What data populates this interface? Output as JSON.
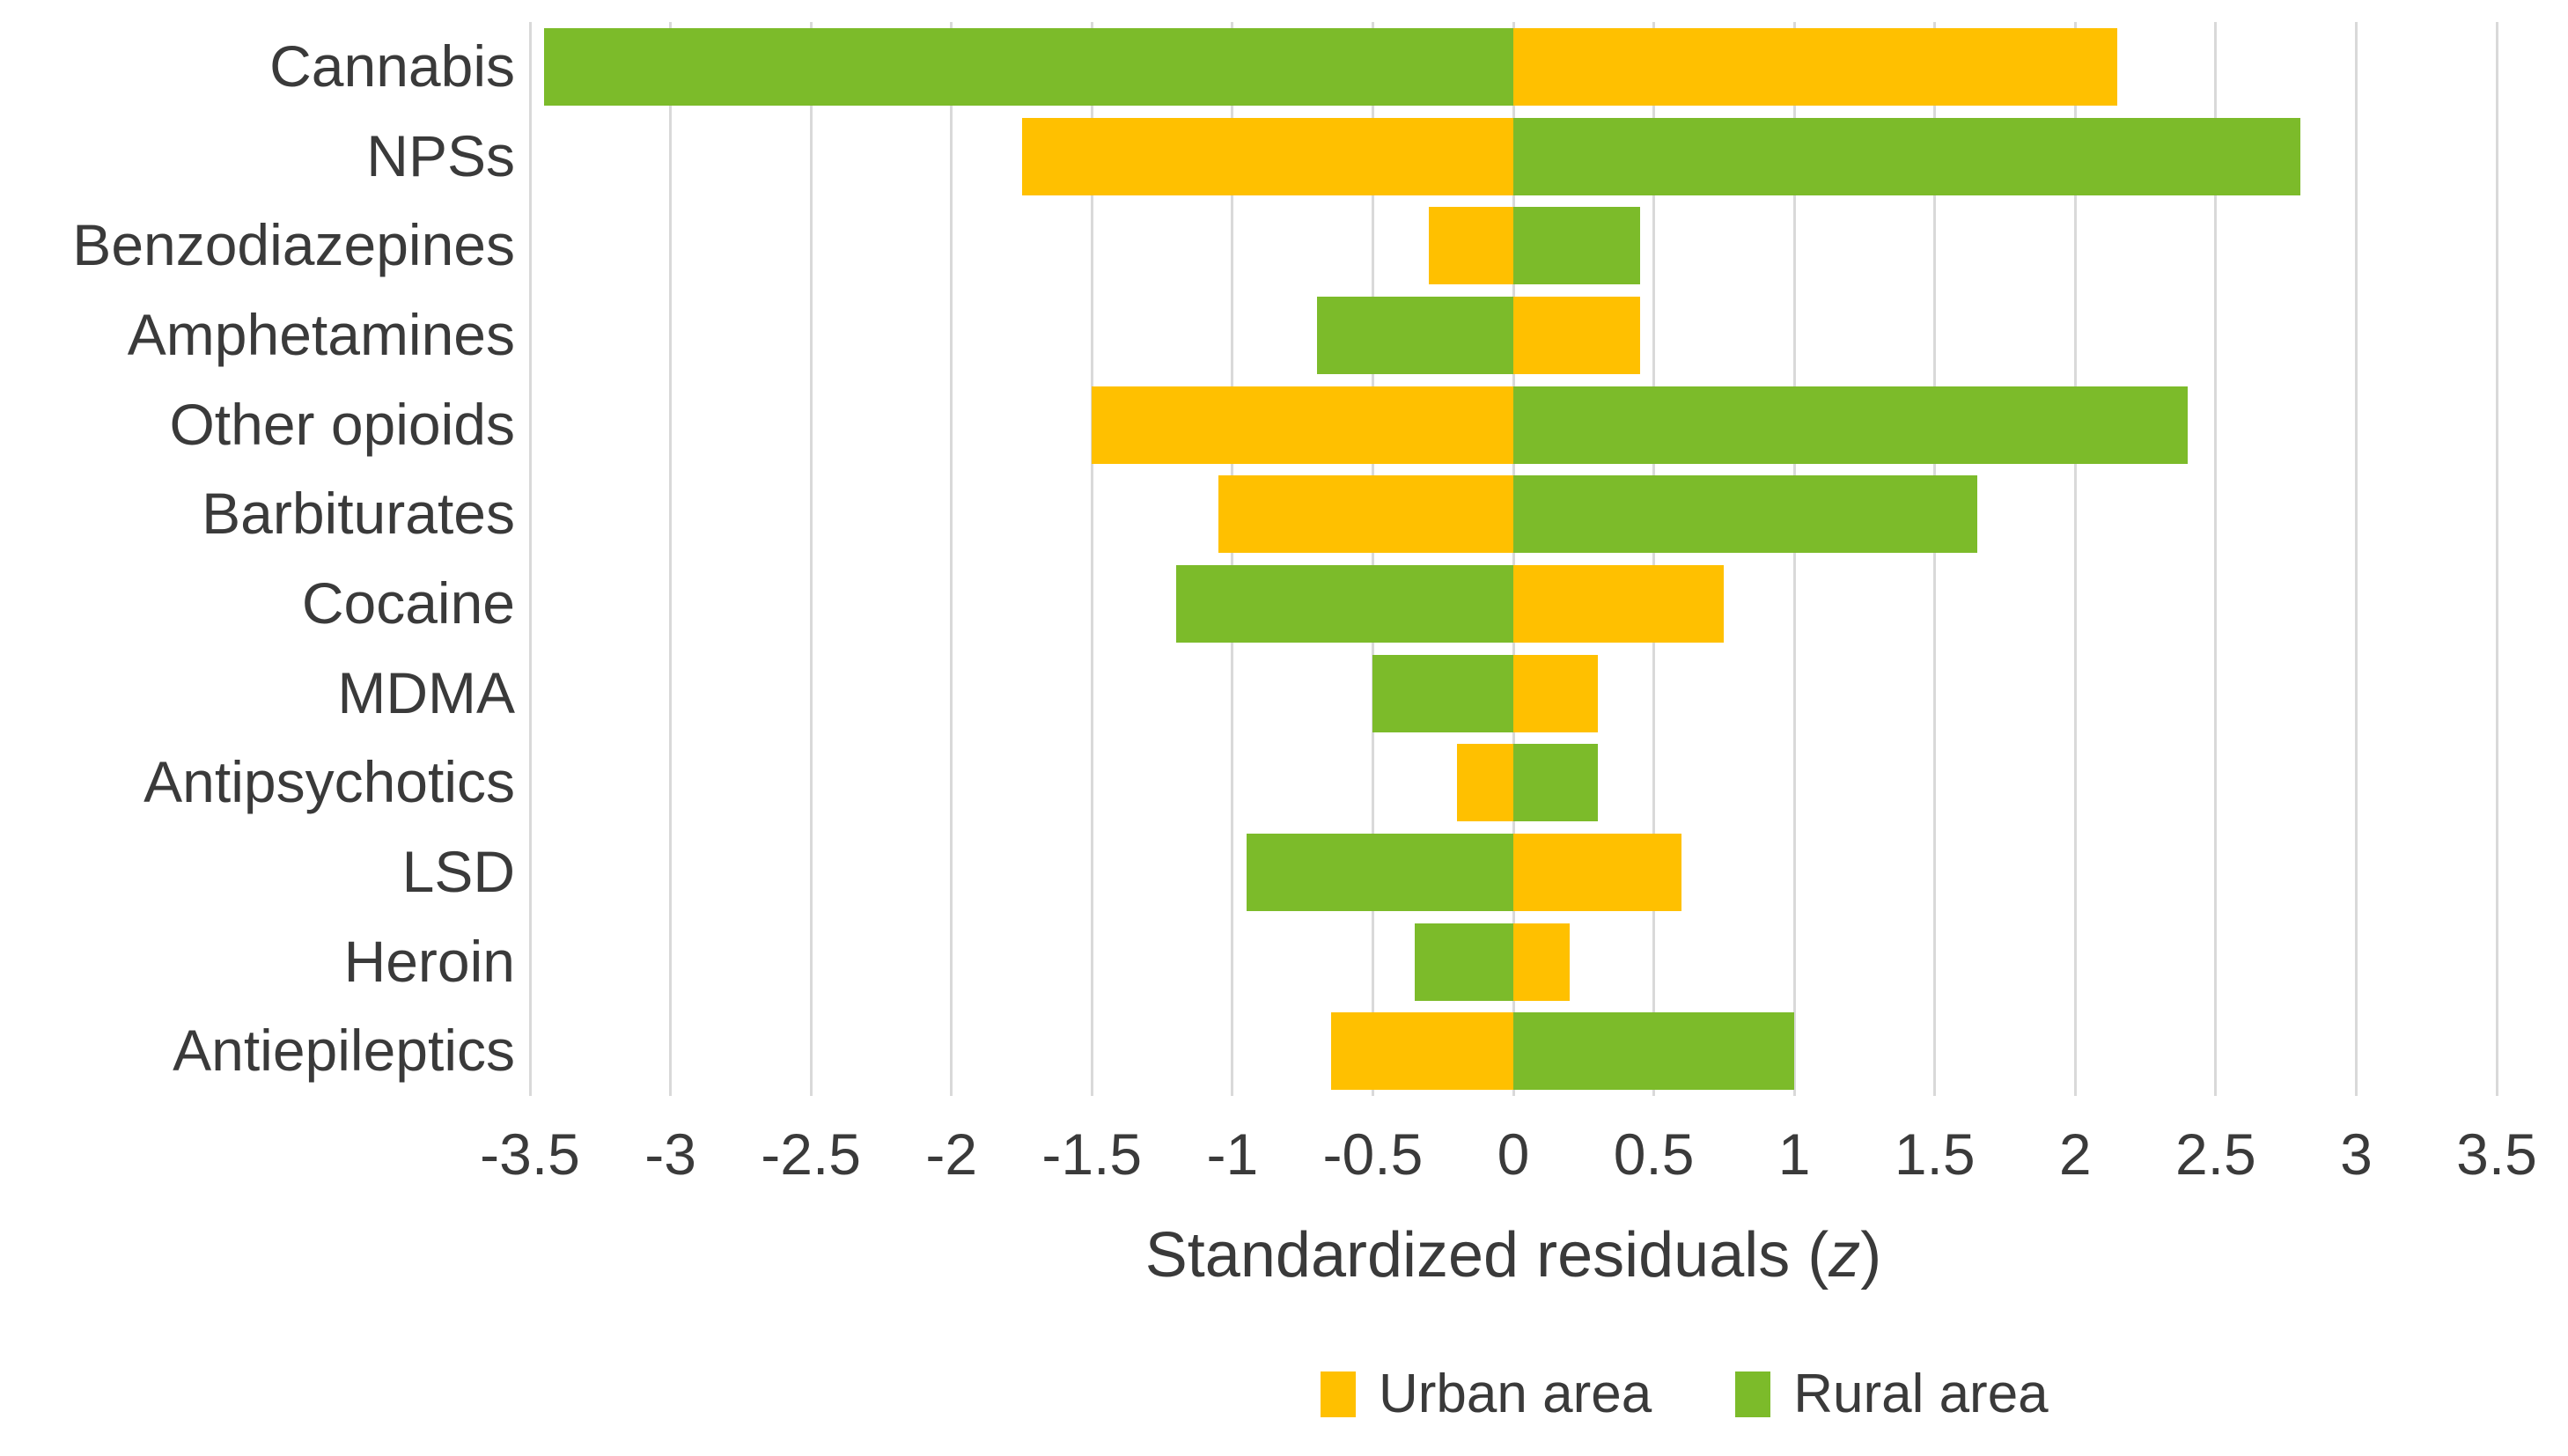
{
  "chart_data": {
    "type": "bar",
    "orientation": "horizontal",
    "title": "",
    "xlabel_prefix": "Standardized residuals (",
    "xlabel_italic": "z",
    "xlabel_suffix": ")",
    "categories": [
      "Cannabis",
      "NPSs",
      "Benzodiazepines",
      "Amphetamines",
      "Other opioids",
      "Barbiturates",
      "Cocaine",
      "MDMA",
      "Antipsychotics",
      "LSD",
      "Heroin",
      "Antiepileptics"
    ],
    "series": [
      {
        "name": "Urban area",
        "color": "#FFC000",
        "values": [
          2.15,
          -1.75,
          -0.3,
          0.45,
          -1.5,
          -1.05,
          0.75,
          0.3,
          -0.2,
          0.6,
          0.2,
          -0.65
        ]
      },
      {
        "name": "Rural area",
        "color": "#7CBB2A",
        "values": [
          -3.45,
          2.8,
          0.45,
          -0.7,
          2.4,
          1.65,
          -1.2,
          -0.5,
          0.3,
          -0.95,
          -0.35,
          1.0
        ]
      }
    ],
    "xlim": [
      -3.5,
      3.5
    ],
    "xtick_step": 0.5,
    "xticks": [
      "-3.5",
      "-3",
      "-2.5",
      "-2",
      "-1.5",
      "-1",
      "-0.5",
      "0",
      "0.5",
      "1",
      "1.5",
      "2",
      "2.5",
      "3",
      "3.5"
    ],
    "grid": true,
    "gridline_color": "#d9d9d9",
    "text_color": "#3a3a3a",
    "legend_position": "bottom"
  },
  "legend": {
    "items": [
      {
        "label": "Urban area",
        "color": "#FFC000"
      },
      {
        "label": "Rural area",
        "color": "#7CBB2A"
      }
    ]
  }
}
